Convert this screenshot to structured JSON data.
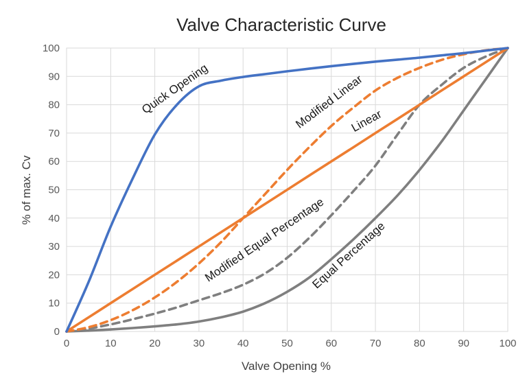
{
  "title": "Valve Characteristic Curve",
  "colors": {
    "blue": "#4472C4",
    "orange": "#ED7D31",
    "gray": "#7F7F7F",
    "grid": "#D9D9D9",
    "tick_text": "#595959",
    "title_text": "#262626",
    "annotation_text": "#1a1a1a"
  },
  "chart_data": {
    "type": "line",
    "title": "Valve Characteristic Curve",
    "xlabel": "Valve Opening %",
    "ylabel": "% of max. Cv",
    "xlim": [
      0,
      100
    ],
    "ylim": [
      0,
      100
    ],
    "x_ticks": [
      0,
      10,
      20,
      30,
      40,
      50,
      60,
      70,
      80,
      90,
      100
    ],
    "y_ticks": [
      0,
      10,
      20,
      30,
      40,
      50,
      60,
      70,
      80,
      90,
      100
    ],
    "grid": true,
    "legend": "none (labels drawn on curves)",
    "x": [
      0,
      5,
      10,
      15,
      20,
      25,
      30,
      35,
      40,
      45,
      50,
      55,
      60,
      65,
      70,
      75,
      80,
      85,
      90,
      95,
      100
    ],
    "series": [
      {
        "name": "Equal Percentage",
        "color": "#7F7F7F",
        "dash": "solid",
        "values": [
          0,
          0.3,
          0.7,
          1.2,
          1.8,
          2.5,
          3.5,
          5,
          7,
          10,
          14,
          19,
          25.5,
          32.5,
          40,
          48,
          57,
          67,
          78,
          89,
          100
        ],
        "label": {
          "text": "Equal Percentage",
          "x": 64.5,
          "y": 25.9,
          "angle": -42
        }
      },
      {
        "name": "Modified Equal Percentage",
        "color": "#7F7F7F",
        "dash": "dashed",
        "values": [
          0,
          1,
          2.5,
          4.3,
          6.3,
          8.5,
          11,
          13.5,
          16.5,
          20.5,
          26,
          33,
          41,
          49.5,
          58.5,
          69.5,
          80,
          87,
          93,
          97,
          100
        ],
        "label": {
          "text": "Modified Equal Percentage",
          "x": 45.3,
          "y": 31.2,
          "angle": -34
        }
      },
      {
        "name": "Linear",
        "color": "#ED7D31",
        "dash": "solid",
        "values": [
          0,
          5,
          10,
          15,
          20,
          25,
          30,
          35,
          40,
          45,
          50,
          55,
          60,
          65,
          70,
          75,
          80,
          85,
          90,
          95,
          100
        ],
        "label": {
          "text": "Linear",
          "x": 68.4,
          "y": 73.1,
          "angle": -29
        }
      },
      {
        "name": "Modified Linear",
        "color": "#ED7D31",
        "dash": "dashed",
        "values": [
          0,
          1.5,
          4,
          7.5,
          12,
          17.5,
          24,
          31.5,
          40,
          48.5,
          57,
          65,
          72.5,
          79,
          85,
          89.5,
          93,
          95.8,
          97.8,
          99.2,
          100
        ],
        "label": {
          "text": "Modified Linear",
          "x": 60.0,
          "y": 80.0,
          "angle": -37
        }
      },
      {
        "name": "Quick Opening",
        "color": "#4472C4",
        "dash": "solid",
        "values": [
          0,
          17.5,
          37,
          54,
          69.5,
          80,
          86.5,
          88.5,
          89.8,
          90.8,
          91.8,
          92.7,
          93.6,
          94.4,
          95.2,
          95.9,
          96.6,
          97.4,
          98.2,
          99.1,
          100
        ],
        "label": {
          "text": "Quick Opening",
          "x": 25.0,
          "y": 84.5,
          "angle": -35
        }
      }
    ]
  }
}
